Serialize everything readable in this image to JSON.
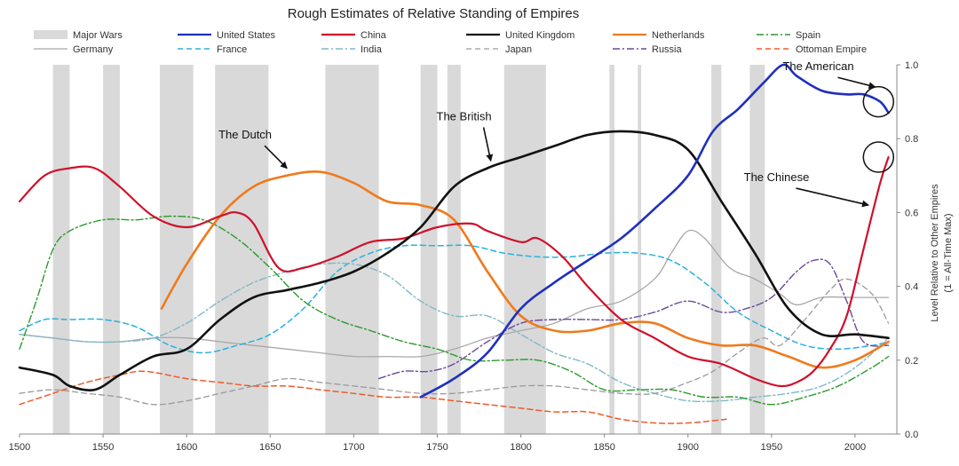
{
  "chart_data": {
    "type": "line",
    "title": "Rough Estimates of Relative Standing of Empires",
    "ylabel_line1": "Level Relative to Other Empires",
    "ylabel_line2": "(1 = All-Time Max)",
    "xlim": [
      1500,
      2025
    ],
    "ylim": [
      0,
      1.0
    ],
    "x_ticks": [
      "1500",
      "1550",
      "1600",
      "1650",
      "1700",
      "1750",
      "1800",
      "1850",
      "1900",
      "1950",
      "2000"
    ],
    "y_ticks": [
      "0.0",
      "0.2",
      "0.4",
      "0.6",
      "0.8",
      "1.0"
    ],
    "grid": false,
    "legend_position": "top",
    "major_wars_label": "Major Wars",
    "major_wars": [
      [
        1520,
        1530
      ],
      [
        1550,
        1560
      ],
      [
        1584,
        1604
      ],
      [
        1617,
        1649
      ],
      [
        1683,
        1715
      ],
      [
        1740,
        1750
      ],
      [
        1756,
        1764
      ],
      [
        1790,
        1815
      ],
      [
        1853,
        1856
      ],
      [
        1870,
        1872
      ],
      [
        1914,
        1920
      ],
      [
        1937,
        1946
      ]
    ],
    "series": [
      {
        "name": "United States",
        "color": "#1f2fc0",
        "style": "solid",
        "width": 2.6,
        "x": [
          1740,
          1760,
          1780,
          1800,
          1820,
          1840,
          1860,
          1880,
          1900,
          1915,
          1930,
          1945,
          1957,
          1965,
          1980,
          1995,
          2005,
          2015,
          2020
        ],
        "y": [
          0.1,
          0.15,
          0.22,
          0.34,
          0.41,
          0.47,
          0.53,
          0.61,
          0.7,
          0.82,
          0.88,
          0.95,
          1.0,
          0.97,
          0.93,
          0.92,
          0.92,
          0.9,
          0.87
        ]
      },
      {
        "name": "China",
        "color": "#d0102a",
        "style": "solid",
        "width": 2.2,
        "x": [
          1500,
          1515,
          1530,
          1545,
          1560,
          1580,
          1600,
          1620,
          1630,
          1640,
          1655,
          1670,
          1690,
          1710,
          1730,
          1750,
          1770,
          1780,
          1800,
          1810,
          1825,
          1840,
          1860,
          1880,
          1900,
          1920,
          1940,
          1955,
          1965,
          1975,
          1985,
          1995,
          2005,
          2015,
          2020
        ],
        "y": [
          0.63,
          0.7,
          0.72,
          0.72,
          0.67,
          0.59,
          0.56,
          0.59,
          0.6,
          0.57,
          0.45,
          0.45,
          0.48,
          0.52,
          0.53,
          0.56,
          0.57,
          0.55,
          0.52,
          0.53,
          0.48,
          0.4,
          0.31,
          0.26,
          0.21,
          0.19,
          0.15,
          0.13,
          0.14,
          0.17,
          0.23,
          0.32,
          0.5,
          0.68,
          0.75
        ]
      },
      {
        "name": "United Kingdom",
        "color": "#111111",
        "style": "solid",
        "width": 2.6,
        "x": [
          1500,
          1520,
          1530,
          1545,
          1560,
          1580,
          1600,
          1620,
          1640,
          1660,
          1680,
          1700,
          1720,
          1740,
          1760,
          1780,
          1800,
          1820,
          1840,
          1860,
          1880,
          1900,
          1920,
          1940,
          1960,
          1980,
          2000,
          2020
        ],
        "y": [
          0.18,
          0.16,
          0.13,
          0.12,
          0.16,
          0.21,
          0.23,
          0.31,
          0.37,
          0.39,
          0.41,
          0.44,
          0.49,
          0.56,
          0.67,
          0.72,
          0.75,
          0.78,
          0.81,
          0.82,
          0.81,
          0.77,
          0.63,
          0.49,
          0.34,
          0.27,
          0.27,
          0.26
        ]
      },
      {
        "name": "Netherlands",
        "color": "#f07a1c",
        "style": "solid",
        "width": 2.6,
        "x": [
          1585,
          1600,
          1620,
          1640,
          1660,
          1680,
          1700,
          1720,
          1740,
          1760,
          1780,
          1800,
          1820,
          1840,
          1860,
          1880,
          1900,
          1920,
          1940,
          1960,
          1980,
          2000,
          2020
        ],
        "y": [
          0.34,
          0.46,
          0.59,
          0.67,
          0.7,
          0.71,
          0.68,
          0.63,
          0.62,
          0.58,
          0.44,
          0.32,
          0.28,
          0.28,
          0.3,
          0.3,
          0.26,
          0.24,
          0.24,
          0.21,
          0.18,
          0.2,
          0.25
        ]
      },
      {
        "name": "Spain",
        "color": "#2a9a2a",
        "style": "dashdot",
        "width": 1.4,
        "x": [
          1500,
          1510,
          1520,
          1530,
          1550,
          1570,
          1590,
          1610,
          1630,
          1650,
          1670,
          1690,
          1710,
          1730,
          1750,
          1770,
          1790,
          1810,
          1830,
          1850,
          1870,
          1890,
          1910,
          1930,
          1950,
          1970,
          1990,
          2010,
          2020
        ],
        "y": [
          0.23,
          0.36,
          0.5,
          0.55,
          0.58,
          0.58,
          0.59,
          0.58,
          0.53,
          0.45,
          0.36,
          0.31,
          0.28,
          0.25,
          0.23,
          0.2,
          0.2,
          0.2,
          0.17,
          0.12,
          0.12,
          0.12,
          0.1,
          0.1,
          0.08,
          0.1,
          0.13,
          0.18,
          0.21
        ]
      },
      {
        "name": "Germany",
        "color": "#a8a8a8",
        "style": "solid",
        "width": 1.3,
        "x": [
          1500,
          1520,
          1540,
          1560,
          1580,
          1600,
          1620,
          1640,
          1660,
          1680,
          1700,
          1720,
          1740,
          1760,
          1780,
          1800,
          1820,
          1840,
          1860,
          1880,
          1890,
          1900,
          1910,
          1925,
          1940,
          1955,
          1965,
          1980,
          2000,
          2020
        ],
        "y": [
          0.27,
          0.26,
          0.25,
          0.25,
          0.26,
          0.26,
          0.25,
          0.24,
          0.23,
          0.22,
          0.21,
          0.21,
          0.21,
          0.23,
          0.26,
          0.28,
          0.3,
          0.34,
          0.36,
          0.42,
          0.49,
          0.55,
          0.53,
          0.45,
          0.42,
          0.38,
          0.35,
          0.37,
          0.37,
          0.37
        ]
      },
      {
        "name": "France",
        "color": "#2ab0e0",
        "style": "dashed",
        "width": 1.5,
        "x": [
          1500,
          1515,
          1530,
          1550,
          1570,
          1590,
          1610,
          1630,
          1650,
          1670,
          1690,
          1710,
          1730,
          1750,
          1770,
          1790,
          1810,
          1830,
          1850,
          1870,
          1890,
          1910,
          1930,
          1950,
          1970,
          1990,
          2010,
          2020
        ],
        "y": [
          0.28,
          0.31,
          0.31,
          0.31,
          0.29,
          0.24,
          0.22,
          0.24,
          0.27,
          0.34,
          0.44,
          0.49,
          0.51,
          0.51,
          0.51,
          0.49,
          0.48,
          0.48,
          0.49,
          0.49,
          0.47,
          0.41,
          0.33,
          0.28,
          0.24,
          0.23,
          0.24,
          0.25
        ]
      },
      {
        "name": "India",
        "color": "#7fb8c8",
        "style": "dashdot",
        "width": 1.4,
        "x": [
          1500,
          1520,
          1540,
          1560,
          1580,
          1600,
          1620,
          1640,
          1660,
          1680,
          1700,
          1720,
          1740,
          1760,
          1780,
          1800,
          1820,
          1840,
          1860,
          1880,
          1900,
          1920,
          1940,
          1960,
          1980,
          2000,
          2020
        ],
        "y": [
          0.27,
          0.26,
          0.25,
          0.25,
          0.26,
          0.3,
          0.36,
          0.41,
          0.44,
          0.46,
          0.46,
          0.43,
          0.36,
          0.32,
          0.32,
          0.27,
          0.22,
          0.19,
          0.14,
          0.11,
          0.09,
          0.09,
          0.1,
          0.11,
          0.13,
          0.18,
          0.26
        ]
      },
      {
        "name": "Japan",
        "color": "#9a9a9a",
        "style": "dashed",
        "width": 1.3,
        "x": [
          1500,
          1520,
          1540,
          1560,
          1580,
          1600,
          1620,
          1640,
          1660,
          1680,
          1700,
          1720,
          1740,
          1760,
          1780,
          1800,
          1820,
          1840,
          1860,
          1880,
          1900,
          1915,
          1930,
          1945,
          1955,
          1970,
          1985,
          1995,
          2010,
          2020
        ],
        "y": [
          0.11,
          0.12,
          0.11,
          0.1,
          0.08,
          0.09,
          0.11,
          0.13,
          0.15,
          0.14,
          0.13,
          0.12,
          0.11,
          0.11,
          0.12,
          0.13,
          0.13,
          0.12,
          0.11,
          0.11,
          0.14,
          0.17,
          0.22,
          0.26,
          0.24,
          0.31,
          0.39,
          0.42,
          0.38,
          0.3
        ]
      },
      {
        "name": "Russia",
        "color": "#6a4a9a",
        "style": "dashdot",
        "width": 1.4,
        "x": [
          1715,
          1730,
          1745,
          1760,
          1780,
          1800,
          1820,
          1840,
          1860,
          1880,
          1900,
          1920,
          1935,
          1950,
          1965,
          1975,
          1985,
          1995,
          2005,
          2020
        ],
        "y": [
          0.15,
          0.17,
          0.17,
          0.19,
          0.25,
          0.3,
          0.31,
          0.31,
          0.31,
          0.33,
          0.36,
          0.33,
          0.34,
          0.37,
          0.44,
          0.47,
          0.46,
          0.36,
          0.25,
          0.24
        ]
      },
      {
        "name": "Ottoman Empire",
        "color": "#f05a2a",
        "style": "dashed",
        "width": 1.5,
        "x": [
          1500,
          1520,
          1540,
          1560,
          1575,
          1600,
          1620,
          1640,
          1660,
          1680,
          1700,
          1720,
          1740,
          1760,
          1780,
          1800,
          1820,
          1840,
          1860,
          1880,
          1900,
          1923
        ],
        "y": [
          0.08,
          0.11,
          0.14,
          0.16,
          0.17,
          0.15,
          0.14,
          0.13,
          0.13,
          0.12,
          0.11,
          0.1,
          0.1,
          0.09,
          0.08,
          0.07,
          0.06,
          0.06,
          0.04,
          0.03,
          0.03,
          0.04
        ]
      }
    ],
    "annotations": [
      {
        "text": "The Dutch",
        "tx": 1635,
        "ty": 0.8,
        "ax": 1660,
        "ay": 0.72
      },
      {
        "text": "The British",
        "tx": 1766,
        "ty": 0.85,
        "ax": 1782,
        "ay": 0.74
      },
      {
        "text": "The American",
        "tx": 1978,
        "ty": 0.985,
        "ax": 2012,
        "ay": 0.94
      },
      {
        "text": "The Chinese",
        "tx": 1953,
        "ty": 0.685,
        "ax": 2008,
        "ay": 0.62
      }
    ],
    "circles": [
      {
        "x": 2014,
        "y": 0.9
      },
      {
        "x": 2014,
        "y": 0.75
      }
    ]
  }
}
